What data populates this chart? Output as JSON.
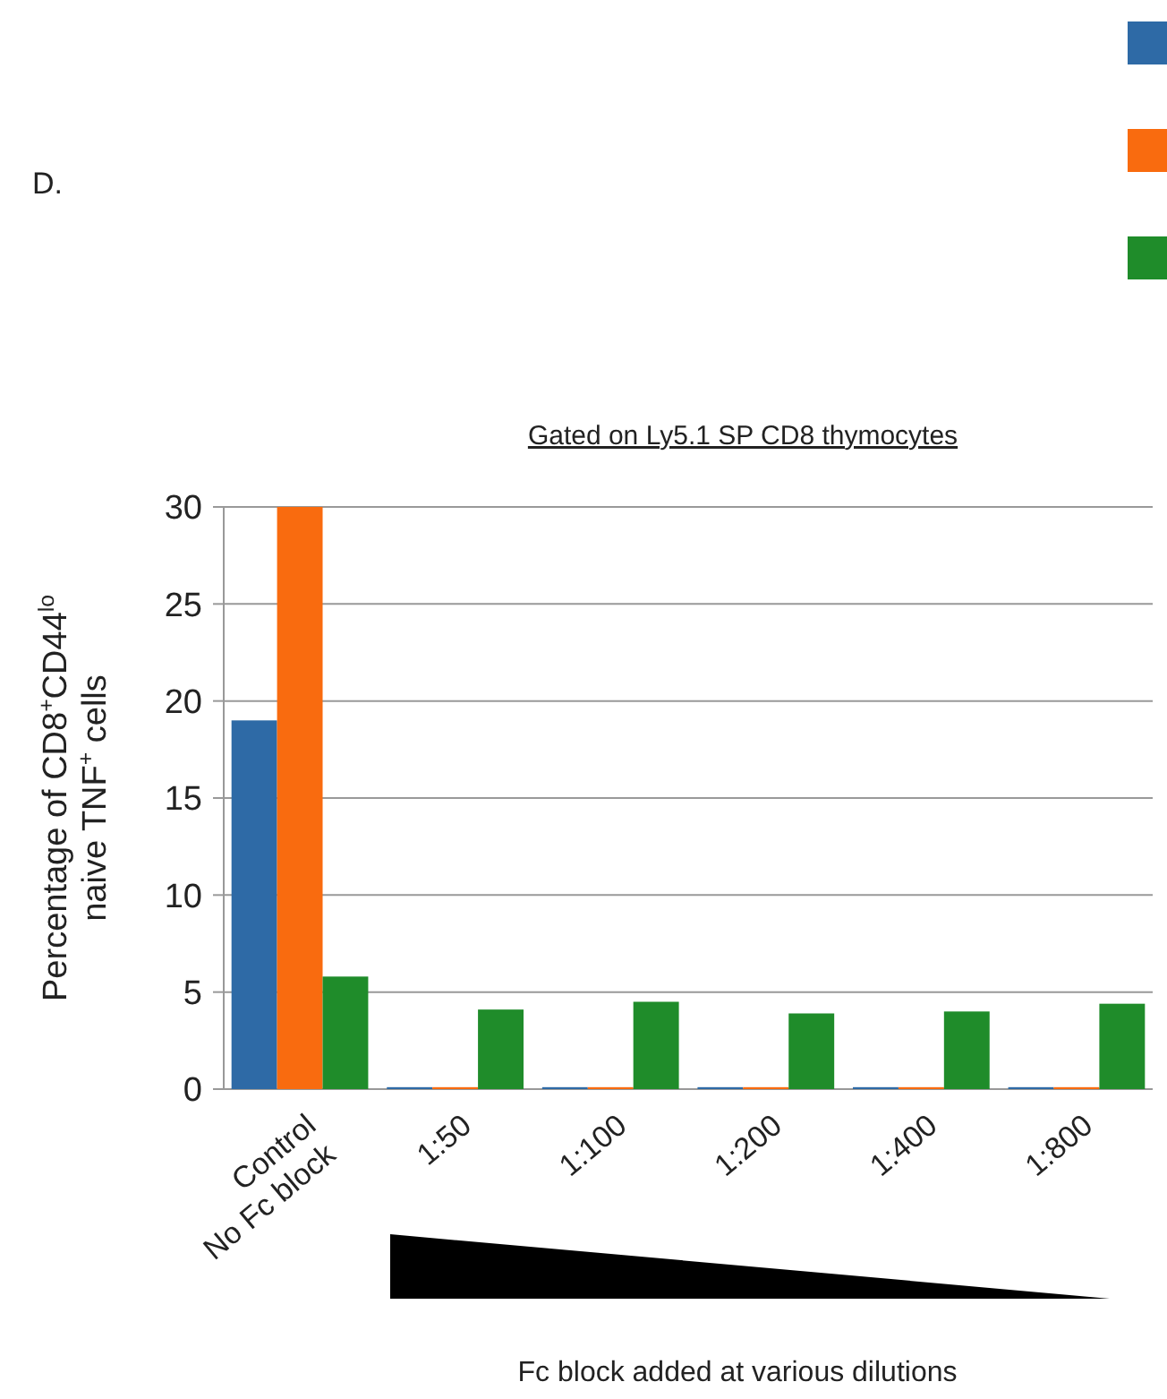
{
  "chart_data": {
    "type": "bar",
    "title": "Gated on Ly5.1 SP CD8 thymocytes",
    "xlabel": "Fc block added at various dilutions",
    "ylabel": "Percentage of CD8$^{+}$CD44$^{lo}$\nnaive TNF$^{+}$ cells",
    "annotations": [
      "D."
    ],
    "categories": [
      "Control\nNo Fc block",
      "1:50",
      "1:100",
      "1:200",
      "1:400",
      "1:800"
    ],
    "series": [
      {
        "color": "#2e6aa6",
        "values": [
          19,
          0.1,
          0.1,
          0.1,
          0.1,
          0.1
        ]
      },
      {
        "color": "#f96b0f",
        "values": [
          30,
          0.1,
          0.1,
          0.1,
          0.1,
          0.1
        ]
      },
      {
        "color": "#1f8c2a",
        "values": [
          5.8,
          4.1,
          4.5,
          3.9,
          4.0,
          4.4
        ]
      }
    ],
    "ylim": [
      0,
      30
    ],
    "yticks": [
      0,
      5,
      10,
      15,
      20,
      25,
      30
    ],
    "grid": "y"
  }
}
